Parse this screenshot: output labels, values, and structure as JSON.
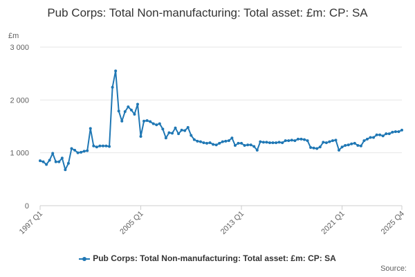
{
  "chart_data": {
    "type": "line",
    "title": "Pub Corps: Total Non-manufacturing: Total asset: £m: CP: SA",
    "ylabel": "£m",
    "ylim": [
      0,
      3000
    ],
    "yticks": [
      {
        "value": 0,
        "label": "0"
      },
      {
        "value": 1000,
        "label": "1 000"
      },
      {
        "value": 2000,
        "label": "2 000"
      },
      {
        "value": 3000,
        "label": "3 000"
      }
    ],
    "xticks": [
      {
        "index": 0,
        "label": "1997 Q1"
      },
      {
        "index": 32,
        "label": "2005 Q1"
      },
      {
        "index": 64,
        "label": "2013 Q1"
      },
      {
        "index": 96,
        "label": "2021 Q1"
      },
      {
        "index": 115,
        "label": "2025 Q4"
      }
    ],
    "grid": true,
    "legend": "bottom",
    "series": [
      {
        "name": "Pub Corps: Total Non-manufacturing: Total asset: £m: CP: SA",
        "color": "#1f77b4",
        "start": "1997 Q1",
        "values": [
          850,
          830,
          780,
          860,
          990,
          830,
          830,
          900,
          680,
          800,
          1080,
          1050,
          1000,
          1010,
          1030,
          1040,
          1460,
          1130,
          1110,
          1130,
          1130,
          1130,
          1120,
          2240,
          2550,
          1790,
          1600,
          1780,
          1870,
          1810,
          1730,
          1920,
          1310,
          1600,
          1610,
          1590,
          1550,
          1530,
          1550,
          1450,
          1280,
          1380,
          1370,
          1470,
          1360,
          1430,
          1420,
          1480,
          1330,
          1250,
          1220,
          1210,
          1190,
          1180,
          1190,
          1160,
          1150,
          1180,
          1210,
          1220,
          1230,
          1280,
          1140,
          1180,
          1180,
          1140,
          1150,
          1150,
          1120,
          1050,
          1210,
          1200,
          1200,
          1190,
          1190,
          1190,
          1200,
          1190,
          1230,
          1230,
          1240,
          1230,
          1260,
          1260,
          1250,
          1230,
          1100,
          1090,
          1080,
          1110,
          1200,
          1190,
          1210,
          1230,
          1240,
          1050,
          1110,
          1140,
          1150,
          1170,
          1180,
          1140,
          1130,
          1230,
          1260,
          1290,
          1290,
          1340,
          1340,
          1320,
          1360,
          1360,
          1390,
          1400,
          1400,
          1430
        ]
      }
    ]
  },
  "source_label": "Source:"
}
